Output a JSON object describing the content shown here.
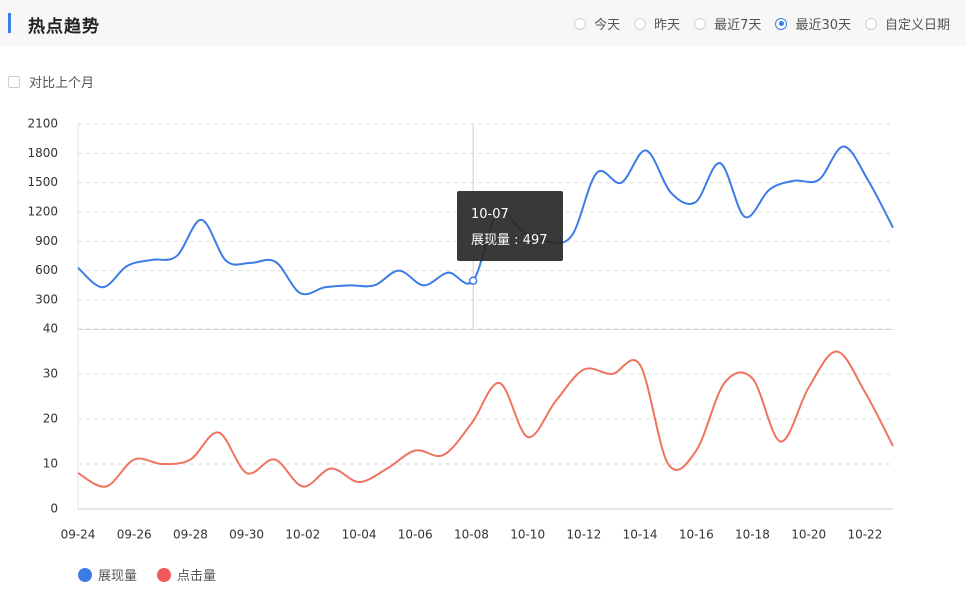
{
  "header": {
    "title": "热点趋势"
  },
  "filters": [
    {
      "label": "今天",
      "checked": false
    },
    {
      "label": "昨天",
      "checked": false
    },
    {
      "label": "最近7天",
      "checked": false
    },
    {
      "label": "最近30天",
      "checked": true
    },
    {
      "label": "自定义日期",
      "checked": false
    }
  ],
  "compare_label": "对比上个月",
  "tooltip": {
    "date": "10-07",
    "series": "展现量",
    "sep": " : ",
    "value": "497"
  },
  "colors": {
    "accent": "#3b7ce6",
    "impressions": "#3b7ce6",
    "clicks": "#f07360",
    "legend_clicks": "#f05a5a"
  },
  "chart_data": [
    {
      "type": "line",
      "series": [
        {
          "name": "展现量",
          "values": [
            630,
            430,
            650,
            710,
            750,
            1120,
            700,
            680,
            690,
            370,
            430,
            450,
            450,
            600,
            450,
            580,
            497,
            1200,
            1000,
            900,
            960,
            1600,
            1500,
            1830,
            1400,
            1300,
            1700,
            1150,
            1430,
            1520,
            1530,
            1870,
            1520,
            1040
          ]
        }
      ],
      "yticks": [
        300,
        600,
        900,
        1200,
        1500,
        1800,
        2100
      ],
      "ylim": [
        0,
        2100
      ],
      "grid": true
    },
    {
      "type": "line",
      "x": [
        "09-24",
        "09-25",
        "09-26",
        "09-27",
        "09-28",
        "09-29",
        "09-30",
        "10-01",
        "10-02",
        "10-03",
        "10-04",
        "10-05",
        "10-06",
        "10-07",
        "10-08",
        "10-09",
        "10-10",
        "10-11",
        "10-12",
        "10-13",
        "10-14",
        "10-15",
        "10-16",
        "10-17",
        "10-18",
        "10-19",
        "10-20",
        "10-21",
        "10-22",
        "10-23"
      ],
      "xticks": [
        "09-24",
        "09-26",
        "09-28",
        "09-30",
        "10-02",
        "10-04",
        "10-06",
        "10-08",
        "10-10",
        "10-12",
        "10-14",
        "10-16",
        "10-18",
        "10-20",
        "10-22"
      ],
      "series": [
        {
          "name": "点击量",
          "values": [
            8,
            5,
            11,
            10,
            11,
            17,
            8,
            11,
            5,
            9,
            6,
            9,
            13,
            12,
            19,
            28,
            16,
            24,
            31,
            30,
            32,
            10,
            13,
            28,
            29,
            15,
            27,
            35,
            26,
            14
          ]
        }
      ],
      "yticks": [
        0,
        10,
        20,
        30,
        40
      ],
      "ylim": [
        0,
        40
      ],
      "grid": true
    }
  ],
  "legend": [
    {
      "label": "展现量"
    },
    {
      "label": "点击量"
    }
  ]
}
